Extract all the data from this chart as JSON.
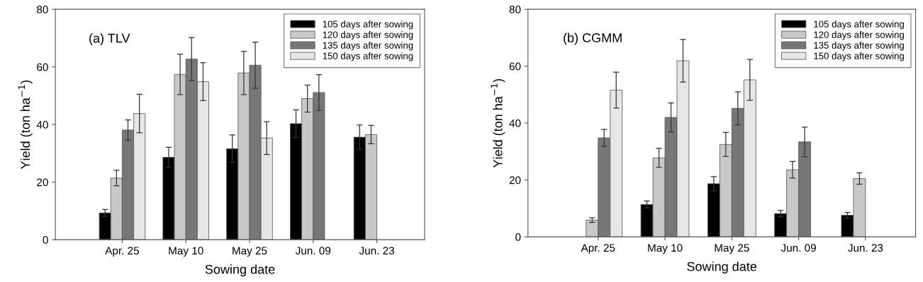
{
  "chart_data": [
    {
      "type": "bar",
      "title": "(a) TLV",
      "xlabel": "Sowing date",
      "ylabel": "Yield (ton ha$^{−1}$)",
      "categories": [
        "Apr. 25",
        "May 10",
        "May 25",
        "Jun. 09",
        "Jun. 23"
      ],
      "series": [
        {
          "name": "105 days after sowing",
          "color": "#000000",
          "values": [
            9.3,
            28.6,
            31.6,
            40.3,
            35.6
          ],
          "errors": [
            1.2,
            3.5,
            4.8,
            4.8,
            4.2
          ]
        },
        {
          "name": "120 days after sowing",
          "color": "#c8c8c8",
          "values": [
            21.4,
            57.4,
            57.9,
            49.0,
            36.5
          ],
          "errors": [
            2.7,
            7.0,
            7.5,
            4.7,
            3.2
          ]
        },
        {
          "name": "135 days after sowing",
          "color": "#777777",
          "values": [
            38.1,
            62.7,
            60.6,
            51.1,
            null
          ],
          "errors": [
            3.5,
            7.5,
            8.0,
            6.2,
            null
          ]
        },
        {
          "name": "150 days after sowing",
          "color": "#e6e6e6",
          "values": [
            43.8,
            54.9,
            35.3,
            null,
            null
          ],
          "errors": [
            6.7,
            6.6,
            5.7,
            null,
            null
          ]
        }
      ],
      "ylim": [
        0,
        80
      ],
      "yticks": [
        0,
        20,
        40,
        60,
        80
      ],
      "grid": false,
      "legend": "top right"
    },
    {
      "type": "bar",
      "title": "(b) CGMM",
      "xlabel": "Sowing date",
      "ylabel": "Yield (ton ha$^{−1}$)",
      "categories": [
        "Apr. 25",
        "May 10",
        "May 25",
        "Jun. 09",
        "Jun. 23"
      ],
      "series": [
        {
          "name": "105 days after sowing",
          "color": "#000000",
          "values": [
            null,
            11.4,
            18.7,
            8.2,
            7.6
          ],
          "errors": [
            null,
            1.2,
            2.5,
            1.1,
            1.0
          ]
        },
        {
          "name": "120 days after sowing",
          "color": "#c8c8c8",
          "values": [
            5.9,
            27.8,
            32.5,
            23.6,
            20.5
          ],
          "errors": [
            0.8,
            3.3,
            4.2,
            2.9,
            2.0
          ]
        },
        {
          "name": "135 days after sowing",
          "color": "#777777",
          "values": [
            34.8,
            42.0,
            45.2,
            33.4,
            null
          ],
          "errors": [
            3.0,
            5.1,
            5.8,
            5.2,
            null
          ]
        },
        {
          "name": "150 days after sowing",
          "color": "#e6e6e6",
          "values": [
            51.6,
            61.9,
            55.2,
            null,
            null
          ],
          "errors": [
            6.3,
            7.5,
            7.2,
            null,
            null
          ]
        }
      ],
      "ylim": [
        0,
        80
      ],
      "yticks": [
        0,
        20,
        40,
        60,
        80
      ],
      "grid": false,
      "legend": "top right"
    }
  ]
}
